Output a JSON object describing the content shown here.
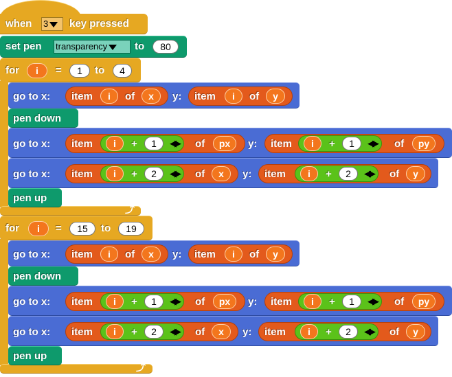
{
  "hat": {
    "when": "when",
    "key": "3",
    "pressed": "key pressed"
  },
  "set_pen": {
    "label": "set pen",
    "option": "transparency",
    "to": "to",
    "value": "80"
  },
  "loops": [
    {
      "for": "for",
      "var": "i",
      "eq": "=",
      "from": "1",
      "to": "to",
      "end": "4"
    },
    {
      "for": "for",
      "var": "i",
      "eq": "=",
      "from": "15",
      "to": "to",
      "end": "19"
    }
  ],
  "words": {
    "go_to_x": "go to x:",
    "y": "y:",
    "item": "item",
    "of": "of",
    "plus": "+",
    "pen_down": "pen down",
    "pen_up": "pen up",
    "i": "i",
    "x": "x",
    "yv": "y",
    "px": "px",
    "py": "py",
    "one": "1",
    "two": "2"
  },
  "colors": {
    "control": "#e6a822",
    "motion": "#4a6cd4",
    "pen": "#0e9a6c",
    "lists": "#e35a1c",
    "operators": "#5bc21a",
    "variables": "#f3761d"
  }
}
